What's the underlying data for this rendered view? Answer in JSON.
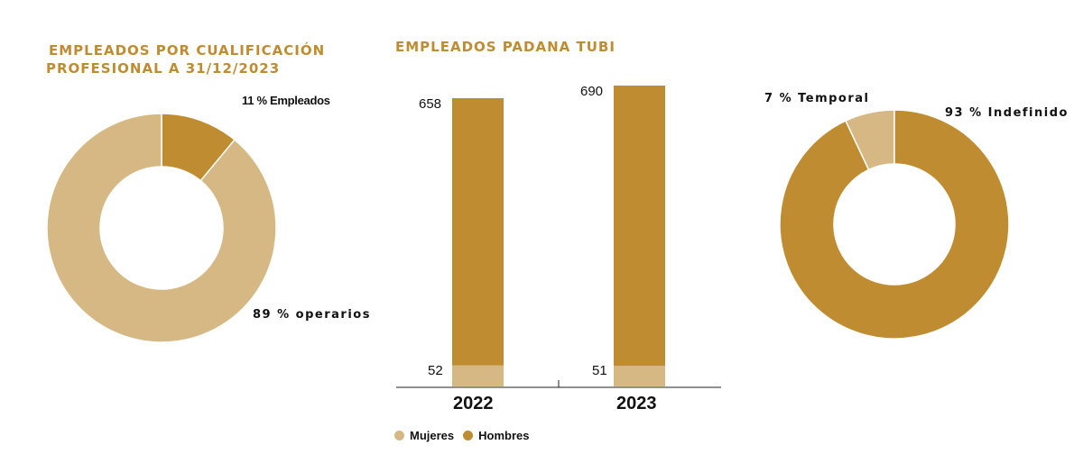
{
  "colors": {
    "accent": "#bf8c31",
    "light": "#d6b884"
  },
  "chart_data": [
    {
      "type": "pie",
      "title_line1": "EMPLEADOS POR CUALIFICACIÓN",
      "title_line2": "PROFESIONAL A 31/12/2023",
      "slices": [
        {
          "label": "11 % Empleados",
          "value": 11,
          "color": "#bf8c31"
        },
        {
          "label": "89 % operarios",
          "value": 89,
          "color": "#d6b884"
        }
      ]
    },
    {
      "type": "bar",
      "title": "EMPLEADOS PADANA TUBI",
      "categories": [
        "2022",
        "2023"
      ],
      "series": [
        {
          "name": "Mujeres",
          "values": [
            52,
            51
          ],
          "color": "#d6b884"
        },
        {
          "name": "Hombres",
          "values": [
            658,
            690
          ],
          "color": "#bf8c31"
        }
      ]
    },
    {
      "type": "pie",
      "slices": [
        {
          "label": "7 % Temporal",
          "value": 7,
          "color": "#d6b884"
        },
        {
          "label": "93 % Indefinido",
          "value": 93,
          "color": "#bf8c31"
        }
      ]
    }
  ]
}
